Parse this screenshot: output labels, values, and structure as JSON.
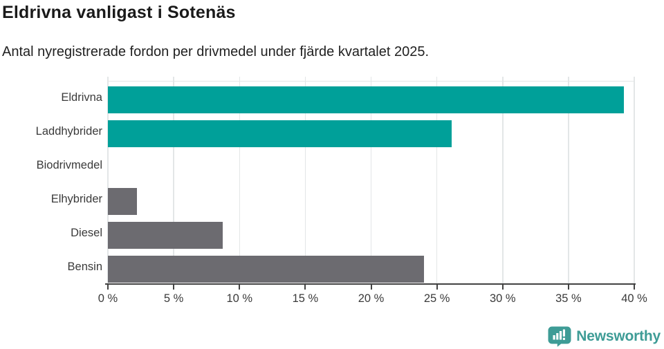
{
  "header": {
    "title": "Eldrivna vanligast i Sotenäs",
    "subtitle": "Antal nyregistrerade fordon per drivmedel under fjärde kvartalet 2025."
  },
  "chart_data": {
    "type": "bar",
    "orientation": "horizontal",
    "title": "Eldrivna vanligast i Sotenäs",
    "subtitle": "Antal nyregistrerade fordon per drivmedel under fjärde kvartalet 2025.",
    "categories": [
      "Eldrivna",
      "Laddhybrider",
      "Biodrivmedel",
      "Elhybrider",
      "Diesel",
      "Bensin"
    ],
    "values": [
      39.2,
      26.1,
      0,
      2.2,
      8.7,
      24
    ],
    "unit": "%",
    "xlim": [
      0,
      40
    ],
    "x_ticks": [
      0,
      5,
      10,
      15,
      20,
      25,
      30,
      35,
      40
    ],
    "x_tick_labels": [
      "0 %",
      "5 %",
      "10 %",
      "15 %",
      "20 %",
      "25 %",
      "30 %",
      "35 %",
      "40 %"
    ],
    "grid": "vertical",
    "legend": "none",
    "highlight_color": "#00a099",
    "default_color": "#6c6b70",
    "bar_colors": [
      "#00a099",
      "#00a099",
      "#00a099",
      "#6c6b70",
      "#6c6b70",
      "#6c6b70"
    ]
  },
  "footer": {
    "brand": "Newsworthy",
    "brand_color": "#3e9c96",
    "logo_icon": "newsworthy-speech-bubble-chart-icon"
  }
}
